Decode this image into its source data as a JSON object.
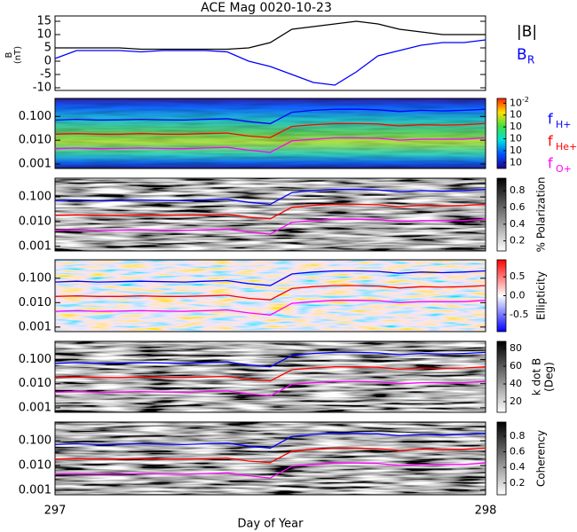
{
  "chart_data": [
    {
      "type": "line",
      "title": "ACE Mag 0020-10-23",
      "ylabel": "B",
      "yunit": "(nT)",
      "x": [
        297,
        297.05,
        297.1,
        297.15,
        297.2,
        297.25,
        297.3,
        297.35,
        297.4,
        297.45,
        297.5,
        297.55,
        297.6,
        297.65,
        297.7,
        297.75,
        297.8,
        297.85,
        297.9,
        297.95,
        298
      ],
      "xlim": [
        297,
        298
      ],
      "ylim": [
        -11,
        17
      ],
      "yticks": [
        -10,
        -5,
        0,
        5,
        10,
        15
      ],
      "series": [
        {
          "name": "|B|",
          "color": "#000000",
          "values": [
            5,
            5,
            5,
            5,
            4.5,
            4.5,
            4.5,
            4.5,
            4.5,
            5,
            7,
            12,
            13,
            14,
            15,
            14,
            12,
            11,
            10,
            10,
            10
          ]
        },
        {
          "name": "B",
          "subscript": "R",
          "color": "#0000ff",
          "values": [
            1,
            4,
            4,
            4,
            3.5,
            4,
            4,
            4,
            3.5,
            0,
            -2,
            -5,
            -8,
            -9,
            -4,
            2,
            4,
            6,
            7,
            7,
            8
          ]
        }
      ]
    },
    {
      "type": "spectrogram",
      "colormap": "rainbow",
      "legend": true,
      "x": [
        297,
        297.05,
        297.1,
        297.15,
        297.2,
        297.25,
        297.3,
        297.35,
        297.4,
        297.45,
        297.5,
        297.55,
        297.6,
        297.65,
        297.7,
        297.75,
        297.8,
        297.85,
        297.9,
        297.95,
        298
      ],
      "xlim": [
        297,
        298
      ],
      "log_y": true,
      "ylim": [
        0.00065,
        0.57
      ],
      "yticks": [
        0.001,
        {
          "value": 0.01,
          "label": "0.010"
        },
        {
          "value": 0.1,
          "label": "0.100"
        }
      ],
      "clim": [
        -7.5,
        -1.6
      ],
      "cticks": [
        {
          "value": -2,
          "label": "10",
          "exponent": "-2"
        },
        {
          "value": -3,
          "label": "10"
        },
        {
          "value": -4,
          "label": "10"
        },
        {
          "value": -5,
          "label": "10"
        },
        {
          "value": -6,
          "label": "10"
        },
        {
          "value": -7,
          "label": "10"
        }
      ],
      "series": [
        {
          "name": "f",
          "subscript": "H+",
          "color": "#0000ff",
          "values": [
            0.07,
            0.075,
            0.07,
            0.072,
            0.075,
            0.072,
            0.07,
            0.075,
            0.08,
            0.06,
            0.05,
            0.15,
            0.18,
            0.2,
            0.2,
            0.19,
            0.16,
            0.18,
            0.17,
            0.18,
            0.2
          ]
        },
        {
          "name": "f",
          "subscript": "He+",
          "color": "#ff0000",
          "values": [
            0.018,
            0.019,
            0.018,
            0.018,
            0.019,
            0.018,
            0.018,
            0.019,
            0.02,
            0.015,
            0.013,
            0.038,
            0.045,
            0.05,
            0.05,
            0.048,
            0.04,
            0.045,
            0.043,
            0.045,
            0.05
          ]
        },
        {
          "name": "f",
          "subscript": "O+",
          "color": "#ff00ff",
          "values": [
            0.0044,
            0.0047,
            0.0044,
            0.0045,
            0.0047,
            0.0045,
            0.0044,
            0.0047,
            0.005,
            0.0038,
            0.0031,
            0.0094,
            0.011,
            0.0125,
            0.0125,
            0.012,
            0.01,
            0.011,
            0.011,
            0.011,
            0.0125
          ]
        }
      ]
    },
    {
      "type": "spectrogram",
      "colormap": "gray",
      "clabel": "% Polarization",
      "x": [
        297,
        297.05,
        297.1,
        297.15,
        297.2,
        297.25,
        297.3,
        297.35,
        297.4,
        297.45,
        297.5,
        297.55,
        297.6,
        297.65,
        297.7,
        297.75,
        297.8,
        297.85,
        297.9,
        297.95,
        298
      ],
      "xlim": [
        297,
        298
      ],
      "log_y": true,
      "ylim": [
        0.00065,
        0.57
      ],
      "yticks": [
        0.001,
        {
          "value": 0.01,
          "label": "0.010"
        },
        {
          "value": 0.1,
          "label": "0.100"
        }
      ],
      "clim": [
        0.08,
        0.95
      ],
      "cticks": [
        0.2,
        0.4,
        0.6,
        0.8
      ],
      "series": [
        {
          "color": "#0000ff",
          "values": [
            0.07,
            0.075,
            0.07,
            0.072,
            0.075,
            0.072,
            0.07,
            0.075,
            0.08,
            0.06,
            0.05,
            0.15,
            0.18,
            0.2,
            0.2,
            0.19,
            0.16,
            0.18,
            0.17,
            0.18,
            0.2
          ]
        },
        {
          "color": "#ff0000",
          "values": [
            0.018,
            0.019,
            0.018,
            0.018,
            0.019,
            0.018,
            0.018,
            0.019,
            0.02,
            0.015,
            0.013,
            0.038,
            0.045,
            0.05,
            0.05,
            0.048,
            0.04,
            0.045,
            0.043,
            0.045,
            0.05
          ]
        },
        {
          "color": "#ff00ff",
          "values": [
            0.0044,
            0.0047,
            0.0044,
            0.0045,
            0.0047,
            0.0045,
            0.0044,
            0.0047,
            0.005,
            0.0038,
            0.0031,
            0.0094,
            0.011,
            0.0125,
            0.0125,
            0.012,
            0.01,
            0.011,
            0.011,
            0.011,
            0.0125
          ]
        }
      ]
    },
    {
      "type": "spectrogram",
      "colormap": "red-blue",
      "clabel": "Ellipticity",
      "x": [
        297,
        297.05,
        297.1,
        297.15,
        297.2,
        297.25,
        297.3,
        297.35,
        297.4,
        297.45,
        297.5,
        297.55,
        297.6,
        297.65,
        297.7,
        297.75,
        297.8,
        297.85,
        297.9,
        297.95,
        298
      ],
      "xlim": [
        297,
        298
      ],
      "log_y": true,
      "ylim": [
        0.00065,
        0.57
      ],
      "yticks": [
        0.001,
        {
          "value": 0.01,
          "label": "0.010"
        },
        {
          "value": 0.1,
          "label": "0.100"
        }
      ],
      "clim": [
        -0.95,
        0.95
      ],
      "cticks": [
        -0.5,
        {
          "value": 0,
          "label": "0.0"
        },
        0.5
      ],
      "series": [
        {
          "color": "#0000ff",
          "values": [
            0.07,
            0.075,
            0.07,
            0.072,
            0.075,
            0.072,
            0.07,
            0.075,
            0.08,
            0.06,
            0.05,
            0.15,
            0.18,
            0.2,
            0.2,
            0.19,
            0.16,
            0.18,
            0.17,
            0.18,
            0.2
          ]
        },
        {
          "color": "#ff0000",
          "values": [
            0.018,
            0.019,
            0.018,
            0.018,
            0.019,
            0.018,
            0.018,
            0.019,
            0.02,
            0.015,
            0.013,
            0.038,
            0.045,
            0.05,
            0.05,
            0.048,
            0.04,
            0.045,
            0.043,
            0.045,
            0.05
          ]
        },
        {
          "color": "#ff00ff",
          "values": [
            0.0044,
            0.0047,
            0.0044,
            0.0045,
            0.0047,
            0.0045,
            0.0044,
            0.0047,
            0.005,
            0.0038,
            0.0031,
            0.0094,
            0.011,
            0.0125,
            0.0125,
            0.012,
            0.01,
            0.011,
            0.011,
            0.011,
            0.0125
          ]
        }
      ]
    },
    {
      "type": "spectrogram",
      "colormap": "gray",
      "clabel": "k dot B",
      "cunit": "(Deg)",
      "x": [
        297,
        297.05,
        297.1,
        297.15,
        297.2,
        297.25,
        297.3,
        297.35,
        297.4,
        297.45,
        297.5,
        297.55,
        297.6,
        297.65,
        297.7,
        297.75,
        297.8,
        297.85,
        297.9,
        297.95,
        298
      ],
      "xlim": [
        297,
        298
      ],
      "log_y": true,
      "ylim": [
        0.00065,
        0.57
      ],
      "yticks": [
        0.001,
        {
          "value": 0.01,
          "label": "0.010"
        },
        {
          "value": 0.1,
          "label": "0.100"
        }
      ],
      "clim": [
        8,
        88
      ],
      "cticks": [
        20,
        40,
        60,
        80
      ],
      "series": [
        {
          "color": "#0000ff",
          "values": [
            0.07,
            0.075,
            0.07,
            0.072,
            0.075,
            0.072,
            0.07,
            0.075,
            0.08,
            0.06,
            0.05,
            0.15,
            0.18,
            0.2,
            0.2,
            0.19,
            0.16,
            0.18,
            0.17,
            0.18,
            0.2
          ]
        },
        {
          "color": "#ff0000",
          "values": [
            0.018,
            0.019,
            0.018,
            0.018,
            0.019,
            0.018,
            0.018,
            0.019,
            0.02,
            0.015,
            0.013,
            0.038,
            0.045,
            0.05,
            0.05,
            0.048,
            0.04,
            0.045,
            0.043,
            0.045,
            0.05
          ]
        },
        {
          "color": "#ff00ff",
          "values": [
            0.0044,
            0.0047,
            0.0044,
            0.0045,
            0.0047,
            0.0045,
            0.0044,
            0.0047,
            0.005,
            0.0038,
            0.0031,
            0.0094,
            0.011,
            0.0125,
            0.0125,
            0.012,
            0.01,
            0.011,
            0.011,
            0.011,
            0.0125
          ]
        }
      ]
    },
    {
      "type": "spectrogram",
      "colormap": "gray",
      "clabel": "Coherency",
      "xlabel": "Day of Year",
      "xticks": [
        297,
        298
      ],
      "x": [
        297,
        297.05,
        297.1,
        297.15,
        297.2,
        297.25,
        297.3,
        297.35,
        297.4,
        297.45,
        297.5,
        297.55,
        297.6,
        297.65,
        297.7,
        297.75,
        297.8,
        297.85,
        297.9,
        297.95,
        298
      ],
      "xlim": [
        297,
        298
      ],
      "log_y": true,
      "ylim": [
        0.00065,
        0.57
      ],
      "yticks": [
        0.001,
        {
          "value": 0.01,
          "label": "0.010"
        },
        {
          "value": 0.1,
          "label": "0.100"
        }
      ],
      "clim": [
        0.05,
        0.98
      ],
      "cticks": [
        0.2,
        0.4,
        0.6,
        0.8
      ],
      "series": [
        {
          "color": "#0000ff",
          "values": [
            0.07,
            0.075,
            0.07,
            0.072,
            0.075,
            0.072,
            0.07,
            0.075,
            0.08,
            0.06,
            0.05,
            0.15,
            0.18,
            0.2,
            0.2,
            0.19,
            0.16,
            0.18,
            0.17,
            0.18,
            0.2
          ]
        },
        {
          "color": "#ff0000",
          "values": [
            0.018,
            0.019,
            0.018,
            0.018,
            0.019,
            0.018,
            0.018,
            0.019,
            0.02,
            0.015,
            0.013,
            0.038,
            0.045,
            0.05,
            0.05,
            0.048,
            0.04,
            0.045,
            0.043,
            0.045,
            0.05
          ]
        },
        {
          "color": "#ff00ff",
          "values": [
            0.0044,
            0.0047,
            0.0044,
            0.0045,
            0.0047,
            0.0045,
            0.0044,
            0.0047,
            0.005,
            0.0038,
            0.0031,
            0.0094,
            0.011,
            0.0125,
            0.0125,
            0.012,
            0.01,
            0.011,
            0.011,
            0.011,
            0.0125
          ]
        }
      ]
    }
  ]
}
